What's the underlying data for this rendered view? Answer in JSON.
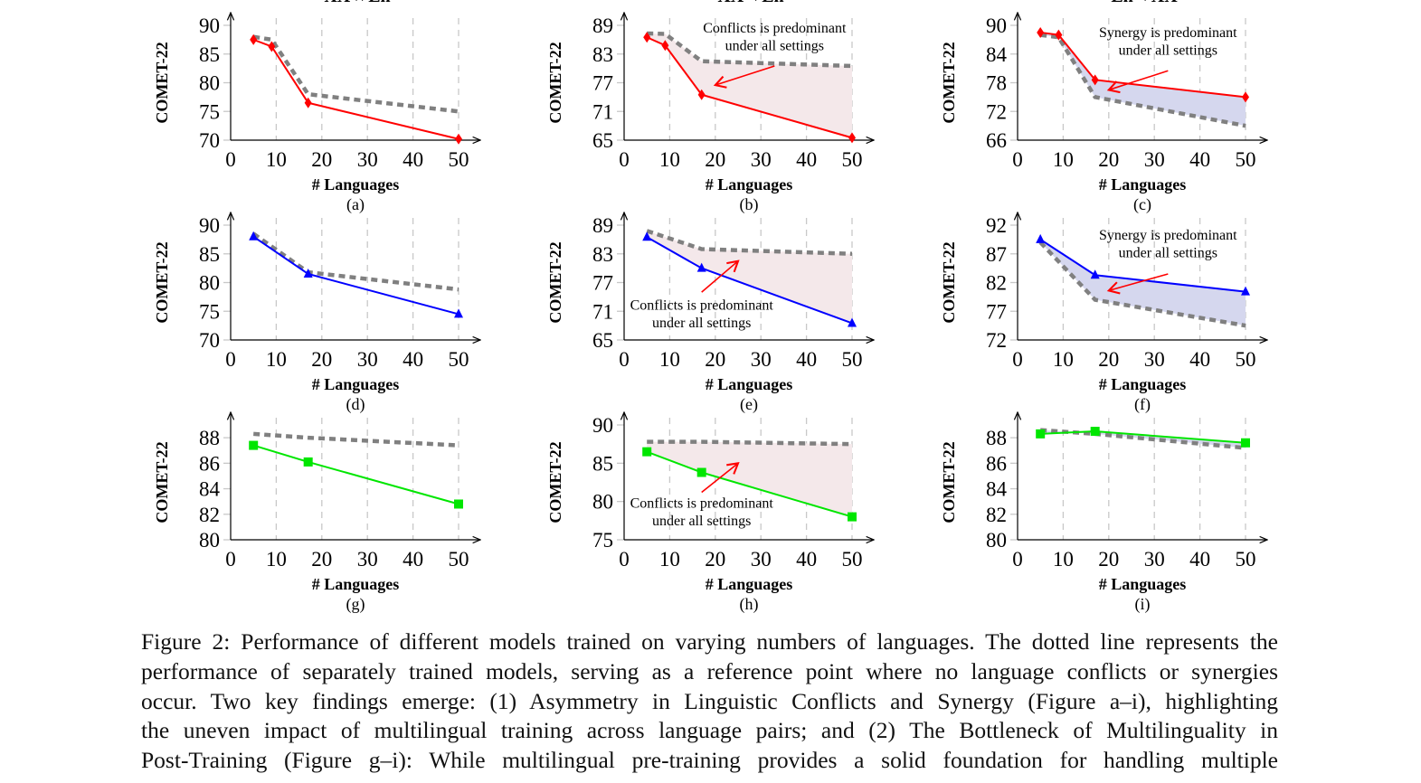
{
  "colors": {
    "red": "#ff0000",
    "blue": "#0000ff",
    "green": "#00e600",
    "reference": "#808080",
    "conflict_fill": "#f4e8ea",
    "synergy_fill": "#d5d7ee",
    "grid": "#c8c8c8"
  },
  "chart_data": [
    {
      "type": "line",
      "title": "XX↔En",
      "label": "(a)",
      "xlabel": "# Languages",
      "ylabel": "COMET-22",
      "xlim": [
        0,
        50
      ],
      "ylim": [
        70,
        90
      ],
      "xticks": [
        0,
        10,
        20,
        30,
        40,
        50
      ],
      "yticks": [
        70,
        75,
        80,
        85,
        90
      ],
      "grid": "vertical dashed",
      "series": [
        {
          "color": "red",
          "marker": "diamond",
          "x": [
            5,
            9,
            17,
            50
          ],
          "y": [
            87.5,
            86.3,
            76.5,
            70.2
          ]
        },
        {
          "style": "dashed",
          "color": "reference",
          "x": [
            5,
            9,
            17,
            50
          ],
          "y": [
            88,
            87.5,
            78,
            75
          ]
        }
      ],
      "fill": null,
      "annotation": null
    },
    {
      "type": "line",
      "title": "XX→En",
      "label": "(b)",
      "xlabel": "# Languages",
      "ylabel": "COMET-22",
      "xlim": [
        0,
        50
      ],
      "ylim": [
        65,
        89
      ],
      "xticks": [
        0,
        10,
        20,
        30,
        40,
        50
      ],
      "yticks": [
        65,
        71,
        77,
        83,
        89
      ],
      "grid": "vertical dashed",
      "series": [
        {
          "color": "red",
          "marker": "diamond",
          "x": [
            5,
            9,
            17,
            50
          ],
          "y": [
            86.5,
            84.8,
            74.5,
            65.5
          ]
        },
        {
          "style": "dashed",
          "color": "reference",
          "x": [
            5,
            9,
            17,
            50
          ],
          "y": [
            87.3,
            87.2,
            81.5,
            80.5
          ]
        }
      ],
      "fill": "conflict_fill",
      "annotation": {
        "lines": [
          "Conflicts is predominant",
          "under all settings"
        ],
        "text_at": [
          33,
          87.5
        ],
        "arrow_from": [
          33,
          80.5
        ],
        "arrow_to": [
          20,
          76.5
        ]
      }
    },
    {
      "type": "line",
      "title": "En→XX",
      "label": "(c)",
      "xlabel": "# Languages",
      "ylabel": "COMET-22",
      "xlim": [
        0,
        50
      ],
      "ylim": [
        66,
        90
      ],
      "xticks": [
        0,
        10,
        20,
        30,
        40,
        50
      ],
      "yticks": [
        66,
        72,
        78,
        84,
        90
      ],
      "grid": "vertical dashed",
      "series": [
        {
          "color": "red",
          "marker": "diamond",
          "x": [
            5,
            9,
            17,
            50
          ],
          "y": [
            88.5,
            88,
            78.6,
            75
          ]
        },
        {
          "style": "dashed",
          "color": "reference",
          "x": [
            5,
            9,
            17,
            50
          ],
          "y": [
            88,
            87.5,
            75,
            69
          ]
        }
      ],
      "fill": "synergy_fill",
      "annotation": {
        "lines": [
          "Synergy is predominant",
          "under all settings"
        ],
        "text_at": [
          33,
          87.5
        ],
        "arrow_from": [
          33,
          80.5
        ],
        "arrow_to": [
          20,
          76.5
        ]
      }
    },
    {
      "type": "line",
      "title": "",
      "label": "(d)",
      "xlabel": "# Languages",
      "ylabel": "COMET-22",
      "xlim": [
        0,
        50
      ],
      "ylim": [
        70,
        90
      ],
      "xticks": [
        0,
        10,
        20,
        30,
        40,
        50
      ],
      "yticks": [
        70,
        75,
        80,
        85,
        90
      ],
      "grid": "vertical dashed",
      "series": [
        {
          "color": "blue",
          "marker": "triangle",
          "x": [
            5,
            17,
            50
          ],
          "y": [
            88,
            81.5,
            74.5
          ]
        },
        {
          "style": "dashed",
          "color": "reference",
          "x": [
            5,
            17,
            50
          ],
          "y": [
            88.5,
            81.8,
            78.8
          ]
        }
      ],
      "fill": null,
      "annotation": null
    },
    {
      "type": "line",
      "title": "",
      "label": "(e)",
      "xlabel": "# Languages",
      "ylabel": "COMET-22",
      "xlim": [
        0,
        50
      ],
      "ylim": [
        65,
        89
      ],
      "xticks": [
        0,
        10,
        20,
        30,
        40,
        50
      ],
      "yticks": [
        65,
        71,
        77,
        83,
        89
      ],
      "grid": "vertical dashed",
      "series": [
        {
          "color": "blue",
          "marker": "triangle",
          "x": [
            5,
            17,
            50
          ],
          "y": [
            86.5,
            80,
            68.5
          ]
        },
        {
          "style": "dashed",
          "color": "reference",
          "x": [
            5,
            17,
            50
          ],
          "y": [
            87.8,
            84,
            83
          ]
        }
      ],
      "fill": "conflict_fill",
      "annotation": {
        "lines": [
          "Conflicts is predominant",
          "under all settings"
        ],
        "text_at": [
          17,
          71.3
        ],
        "arrow_from": [
          17,
          75
        ],
        "arrow_to": [
          25,
          81.5
        ]
      }
    },
    {
      "type": "line",
      "title": "",
      "label": "(f)",
      "xlabel": "# Languages",
      "ylabel": "COMET-22",
      "xlim": [
        0,
        50
      ],
      "ylim": [
        72,
        92
      ],
      "xticks": [
        0,
        10,
        20,
        30,
        40,
        50
      ],
      "yticks": [
        72,
        77,
        82,
        87,
        92
      ],
      "grid": "vertical dashed",
      "series": [
        {
          "color": "blue",
          "marker": "triangle",
          "x": [
            5,
            17,
            50
          ],
          "y": [
            89.5,
            83.3,
            80.4
          ]
        },
        {
          "style": "dashed",
          "color": "reference",
          "x": [
            5,
            17,
            50
          ],
          "y": [
            89,
            79,
            74.5
          ]
        }
      ],
      "fill": "synergy_fill",
      "annotation": {
        "lines": [
          "Synergy is predominant",
          "under all settings"
        ],
        "text_at": [
          33,
          89.5
        ],
        "arrow_from": [
          33,
          83.5
        ],
        "arrow_to": [
          20,
          80.6
        ]
      }
    },
    {
      "type": "line",
      "title": "",
      "label": "(g)",
      "xlabel": "# Languages",
      "ylabel": "COMET-22",
      "xlim": [
        0,
        50
      ],
      "ylim": [
        80,
        89
      ],
      "xticks": [
        0,
        10,
        20,
        30,
        40,
        50
      ],
      "yticks": [
        80,
        82,
        84,
        86,
        88
      ],
      "grid": "vertical dashed",
      "series": [
        {
          "color": "green",
          "marker": "square",
          "x": [
            5,
            17,
            50
          ],
          "y": [
            87.4,
            86.1,
            82.8
          ]
        },
        {
          "style": "dashed",
          "color": "reference",
          "x": [
            5,
            17,
            50
          ],
          "y": [
            88.3,
            88,
            87.4
          ]
        }
      ],
      "fill": null,
      "annotation": null
    },
    {
      "type": "line",
      "title": "",
      "label": "(h)",
      "xlabel": "# Languages",
      "ylabel": "COMET-22",
      "xlim": [
        0,
        50
      ],
      "ylim": [
        75,
        90
      ],
      "xticks": [
        0,
        10,
        20,
        30,
        40,
        50
      ],
      "yticks": [
        75,
        80,
        85,
        90
      ],
      "grid": "vertical dashed",
      "series": [
        {
          "color": "green",
          "marker": "square",
          "x": [
            5,
            17,
            50
          ],
          "y": [
            86.5,
            83.8,
            78
          ]
        },
        {
          "style": "dashed",
          "color": "reference",
          "x": [
            5,
            17,
            50
          ],
          "y": [
            87.8,
            87.8,
            87.5
          ]
        }
      ],
      "fill": "conflict_fill",
      "annotation": {
        "lines": [
          "Conflicts is predominant",
          "under all settings"
        ],
        "text_at": [
          17,
          79.2
        ],
        "arrow_from": [
          17,
          81.2
        ],
        "arrow_to": [
          25,
          85
        ]
      }
    },
    {
      "type": "line",
      "title": "",
      "label": "(i)",
      "xlabel": "# Languages",
      "ylabel": "COMET-22",
      "xlim": [
        0,
        50
      ],
      "ylim": [
        80,
        89
      ],
      "xticks": [
        0,
        10,
        20,
        30,
        40,
        50
      ],
      "yticks": [
        80,
        82,
        84,
        86,
        88
      ],
      "grid": "vertical dashed",
      "series": [
        {
          "color": "green",
          "marker": "square",
          "x": [
            5,
            17,
            50
          ],
          "y": [
            88.3,
            88.5,
            87.6
          ]
        },
        {
          "style": "dashed",
          "color": "reference",
          "x": [
            5,
            17,
            50
          ],
          "y": [
            88.6,
            88.3,
            87.2
          ]
        }
      ],
      "fill": "synergy_fill",
      "annotation": null
    }
  ],
  "caption": {
    "lines": [
      "Figure 2: Performance of different models trained on varying numbers of languages. The dotted line represents the",
      "performance of separately trained models, serving as a reference point where no language conflicts or synergies",
      "occur. Two key findings emerge: (1) Asymmetry in Linguistic Conflicts and Synergy (Figure a–i), highlighting",
      "the uneven impact of multilingual training across language pairs; and (2) The Bottleneck of Multilinguality in",
      "Post-Training (Figure g–i): While multilingual pre-training provides a solid foundation for handling multiple"
    ]
  }
}
